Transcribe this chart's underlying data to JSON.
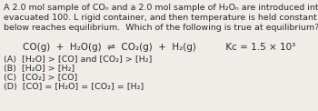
{
  "bg_color": "#f0ede8",
  "text_color": "#2a2a2a",
  "para_line1": "A 2.0 mol sample of COₙ and a 2.0 mol sample of H₂Oₙ are introduced into a previously",
  "para_line2": "evacuated 100. L rigid container, and then temperature is held constant as the reaction",
  "para_line3": "below reaches equilibrium.  Which of the following is true at equilibrium?",
  "eq_line": "CO(g)  +  H₂O(g)  ⇌  CO₂(g)  +  H₂(g)          Kᴄ = 1.5 × 10³",
  "choice_A": "(A)  [H₂O] > [CO] and [CO₂] > [H₂]",
  "choice_B": "(B)  [H₂O] > [H₂]",
  "choice_C": "(C)  [CO₂] > [CO]",
  "choice_D": "(D)  [CO] = [H₂O] = [CO₂] = [H₂]",
  "fontsize_para": 6.8,
  "fontsize_eq": 7.5,
  "fontsize_choices": 6.8,
  "figw": 3.5,
  "figh": 1.22,
  "dpi": 100
}
